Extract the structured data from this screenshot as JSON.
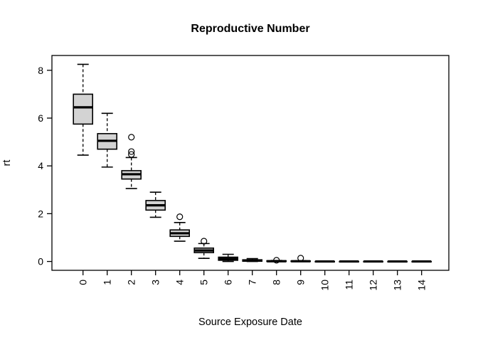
{
  "chart_data": {
    "type": "boxplot",
    "title": "Reproductive Number",
    "xlabel": "Source Exposure Date",
    "ylabel": "rt",
    "categories": [
      "0",
      "1",
      "2",
      "3",
      "4",
      "5",
      "6",
      "7",
      "8",
      "9",
      "10",
      "11",
      "12",
      "13",
      "14"
    ],
    "yticks": [
      0,
      2,
      4,
      6,
      8
    ],
    "ylim": [
      -0.37,
      8.62
    ],
    "grid": false,
    "legend": null,
    "box_fill": "#d3d3d3",
    "line_color": "#000000",
    "background": "#ffffff",
    "boxes": [
      {
        "category": "0",
        "whisker_low": 4.45,
        "q1": 5.75,
        "median": 6.45,
        "q3": 7.0,
        "whisker_high": 8.25,
        "outliers": []
      },
      {
        "category": "1",
        "whisker_low": 3.95,
        "q1": 4.7,
        "median": 5.05,
        "q3": 5.35,
        "whisker_high": 6.2,
        "outliers": []
      },
      {
        "category": "2",
        "whisker_low": 3.05,
        "q1": 3.45,
        "median": 3.65,
        "q3": 3.8,
        "whisker_high": 4.35,
        "outliers": [
          5.2,
          4.6,
          4.48
        ]
      },
      {
        "category": "3",
        "whisker_low": 1.85,
        "q1": 2.15,
        "median": 2.35,
        "q3": 2.55,
        "whisker_high": 2.9,
        "outliers": []
      },
      {
        "category": "4",
        "whisker_low": 0.85,
        "q1": 1.05,
        "median": 1.18,
        "q3": 1.32,
        "whisker_high": 1.63,
        "outliers": [
          1.87
        ]
      },
      {
        "category": "5",
        "whisker_low": 0.13,
        "q1": 0.37,
        "median": 0.46,
        "q3": 0.56,
        "whisker_high": 0.75,
        "outliers": [
          0.85
        ]
      },
      {
        "category": "6",
        "whisker_low": 0.0,
        "q1": 0.05,
        "median": 0.11,
        "q3": 0.18,
        "whisker_high": 0.3,
        "outliers": []
      },
      {
        "category": "7",
        "whisker_low": 0.0,
        "q1": 0.01,
        "median": 0.04,
        "q3": 0.07,
        "whisker_high": 0.12,
        "outliers": []
      },
      {
        "category": "8",
        "whisker_low": 0.0,
        "q1": 0.0,
        "median": 0.01,
        "q3": 0.03,
        "whisker_high": 0.04,
        "outliers": [
          0.05
        ]
      },
      {
        "category": "9",
        "whisker_low": 0.0,
        "q1": 0.0,
        "median": 0.01,
        "q3": 0.02,
        "whisker_high": 0.03,
        "outliers": [
          0.14
        ]
      },
      {
        "category": "10",
        "whisker_low": 0.0,
        "q1": 0.0,
        "median": 0.0,
        "q3": 0.0,
        "whisker_high": 0.0,
        "outliers": []
      },
      {
        "category": "11",
        "whisker_low": 0.0,
        "q1": 0.0,
        "median": 0.0,
        "q3": 0.0,
        "whisker_high": 0.0,
        "outliers": []
      },
      {
        "category": "12",
        "whisker_low": 0.0,
        "q1": 0.0,
        "median": 0.0,
        "q3": 0.0,
        "whisker_high": 0.0,
        "outliers": []
      },
      {
        "category": "13",
        "whisker_low": 0.0,
        "q1": 0.0,
        "median": 0.0,
        "q3": 0.0,
        "whisker_high": 0.0,
        "outliers": []
      },
      {
        "category": "14",
        "whisker_low": 0.0,
        "q1": 0.0,
        "median": 0.0,
        "q3": 0.0,
        "whisker_high": 0.0,
        "outliers": []
      }
    ]
  }
}
